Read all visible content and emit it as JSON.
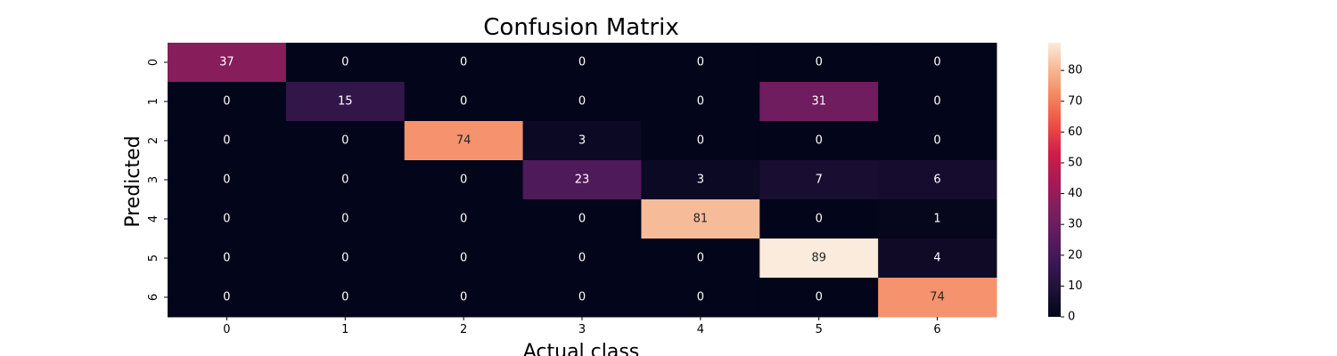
{
  "chart_data": {
    "type": "heatmap",
    "title": "Confusion Matrix",
    "xlabel": "Actual class",
    "ylabel": "Predicted",
    "x_categories": [
      "0",
      "1",
      "2",
      "3",
      "4",
      "5",
      "6"
    ],
    "y_categories": [
      "0",
      "1",
      "2",
      "3",
      "4",
      "5",
      "6"
    ],
    "values": [
      [
        37,
        0,
        0,
        0,
        0,
        0,
        0
      ],
      [
        0,
        15,
        0,
        0,
        0,
        31,
        0
      ],
      [
        0,
        0,
        74,
        3,
        0,
        0,
        0
      ],
      [
        0,
        0,
        0,
        23,
        3,
        7,
        6
      ],
      [
        0,
        0,
        0,
        0,
        81,
        0,
        1
      ],
      [
        0,
        0,
        0,
        0,
        0,
        89,
        4
      ],
      [
        0,
        0,
        0,
        0,
        0,
        0,
        74
      ]
    ],
    "colorbar": {
      "min": 0,
      "max": 89,
      "ticks": [
        "0",
        "10",
        "20",
        "30",
        "40",
        "50",
        "60",
        "70",
        "80"
      ]
    },
    "colormap": "rocket"
  }
}
